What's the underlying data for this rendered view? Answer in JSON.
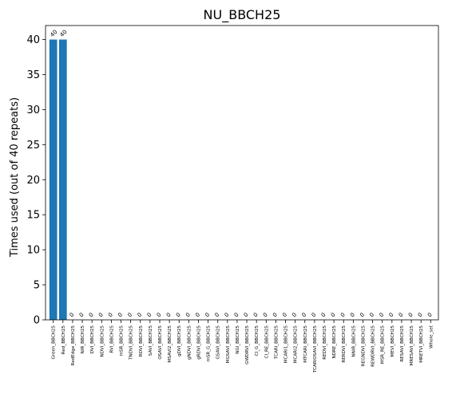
{
  "chart_data": {
    "type": "bar",
    "title": "NU_BBCH25",
    "xlabel": "",
    "ylabel": "Times used (out of 40 repeats)",
    "ylim": [
      0,
      42
    ],
    "yticks": [
      0,
      5,
      10,
      15,
      20,
      25,
      30,
      35,
      40
    ],
    "grid": false,
    "bar_color": "#1f77b4",
    "categories": [
      "Green_BBCH25",
      "Red_BBCH25",
      "RedEdge_BBCH25",
      "NIR_BBCH25",
      "DVI_BBCH25",
      "NDVI_BBCH25",
      "RVI_BBCH25",
      "mSR_BBCH25",
      "TNDVI_BBCH25",
      "RDVI_BBCH25",
      "SAVI_BBCH25",
      "OSAVI_BBCH25",
      "MSAVI2_BBCH25",
      "gDVI_BBCH25",
      "gNDVI_BBCH25",
      "gRDVI_BBCH25",
      "mSR_G_BBCH25",
      "GSAVI_BBCH25",
      "MGSAVI_BBCH25",
      "NGI_BBCH25",
      "GWDRVI_BBCH25",
      "CI_G_BBCH25",
      "CI_RE_BBCH25",
      "TCARI_BBCH25",
      "MCARI1_BBCH25",
      "MCARI2_BBCH25",
      "MTCARI_BBCH25",
      "TCARIOSAVI_BBCH25",
      "REDVI_BBCH25",
      "NDRE_BBCH25",
      "RERDVI_BBCH25",
      "NNIR_BBCH25",
      "REGNDVI_BBCH25",
      "REWDRVI_BBCH25",
      "MSR_RE_BBCH25",
      "MEVI_BBCH25",
      "RESAVI_BBCH25",
      "MRESAVI_BBCH25",
      "MRETVI_BBCH25",
      "Whole_set"
    ],
    "values": [
      40,
      40,
      0,
      0,
      0,
      0,
      0,
      0,
      0,
      0,
      0,
      0,
      0,
      0,
      0,
      0,
      0,
      0,
      0,
      0,
      0,
      0,
      0,
      0,
      0,
      0,
      0,
      0,
      0,
      0,
      0,
      0,
      0,
      0,
      0,
      0,
      0,
      0,
      0,
      0
    ]
  }
}
